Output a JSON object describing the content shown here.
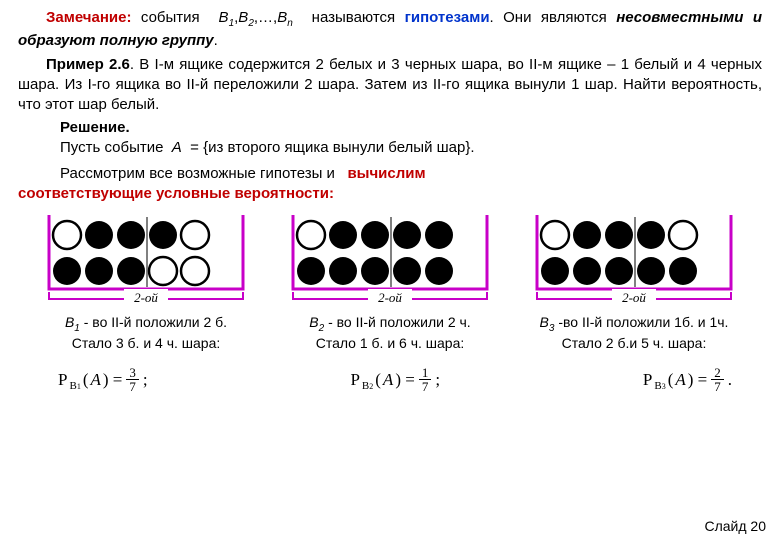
{
  "para": {
    "remark_label": "Замечание:",
    "remark_a": "события",
    "remark_bseq": "B",
    "remark_seq_sub1": "1",
    "remark_seq_sub2": "2",
    "remark_seq_subn": "n",
    "remark_b": "называются",
    "hypoth": "гипотезами",
    "remark_c": ". Они являются",
    "incomp": "несовместными и образуют полную группу",
    "dot": ".",
    "example_label": "Пример 2.6",
    "example_text": ". В I-м ящике содержится 2 белых и 3 черных шара, во II-м ящике – 1 белый и 4 черных шара. Из I-го ящика во II-й переложили 2 шара. Затем из II-го ящика вынули 1 шар. Найти вероятность, что этот шар белый.",
    "sol_label": "Решение.",
    "sol_a": "Пусть событие",
    "sol_A": "A",
    "sol_eq": "= {из второго ящика вынули белый шар}.",
    "sol_b": "Рассмотрим все возможные гипотезы и",
    "calc": "вычислим",
    "cond": "соответствующие условные вероятности:"
  },
  "diagrams": {
    "box_label": "2-ой",
    "colors": {
      "stroke": "#c800c8",
      "divider": "#808080",
      "white_stroke": "#000",
      "black_fill": "#000"
    },
    "circle_r": 14,
    "cases": [
      {
        "top": [
          "w",
          "b",
          "b",
          "div",
          "b",
          "w"
        ],
        "bottom": [
          "b",
          "b",
          "b",
          "div",
          "w",
          "w"
        ],
        "cap1_a": "B",
        "cap1_sub": "1",
        "cap1_b": " - во II-й положили 2 б.",
        "cap2": "Стало 3 б. и 4 ч. шара:",
        "P_sub": "1",
        "num": "3",
        "den": "7"
      },
      {
        "top": [
          "w",
          "b",
          "b",
          "div",
          "b",
          "b"
        ],
        "bottom": [
          "b",
          "b",
          "b",
          "div",
          "b",
          "b"
        ],
        "cap1_a": "B",
        "cap1_sub": "2",
        "cap1_b": " - во II-й положили 2 ч.",
        "cap2": "Стало 1 б. и 6 ч. шара:",
        "P_sub": "2",
        "num": "1",
        "den": "7"
      },
      {
        "top": [
          "w",
          "b",
          "b",
          "div",
          "b",
          "w"
        ],
        "bottom": [
          "b",
          "b",
          "b",
          "div",
          "b",
          "b"
        ],
        "cap1_a": "B",
        "cap1_sub": "3",
        "cap1_b": " -во II-й положили 1б. и 1ч.",
        "cap2": "Стало 2 б.и 5 ч. шара:",
        "P_sub": "3",
        "num": "2",
        "den": "7"
      }
    ]
  },
  "formula": {
    "P": "P",
    "B": "B",
    "A": "A"
  },
  "slide": "Слайд 20"
}
